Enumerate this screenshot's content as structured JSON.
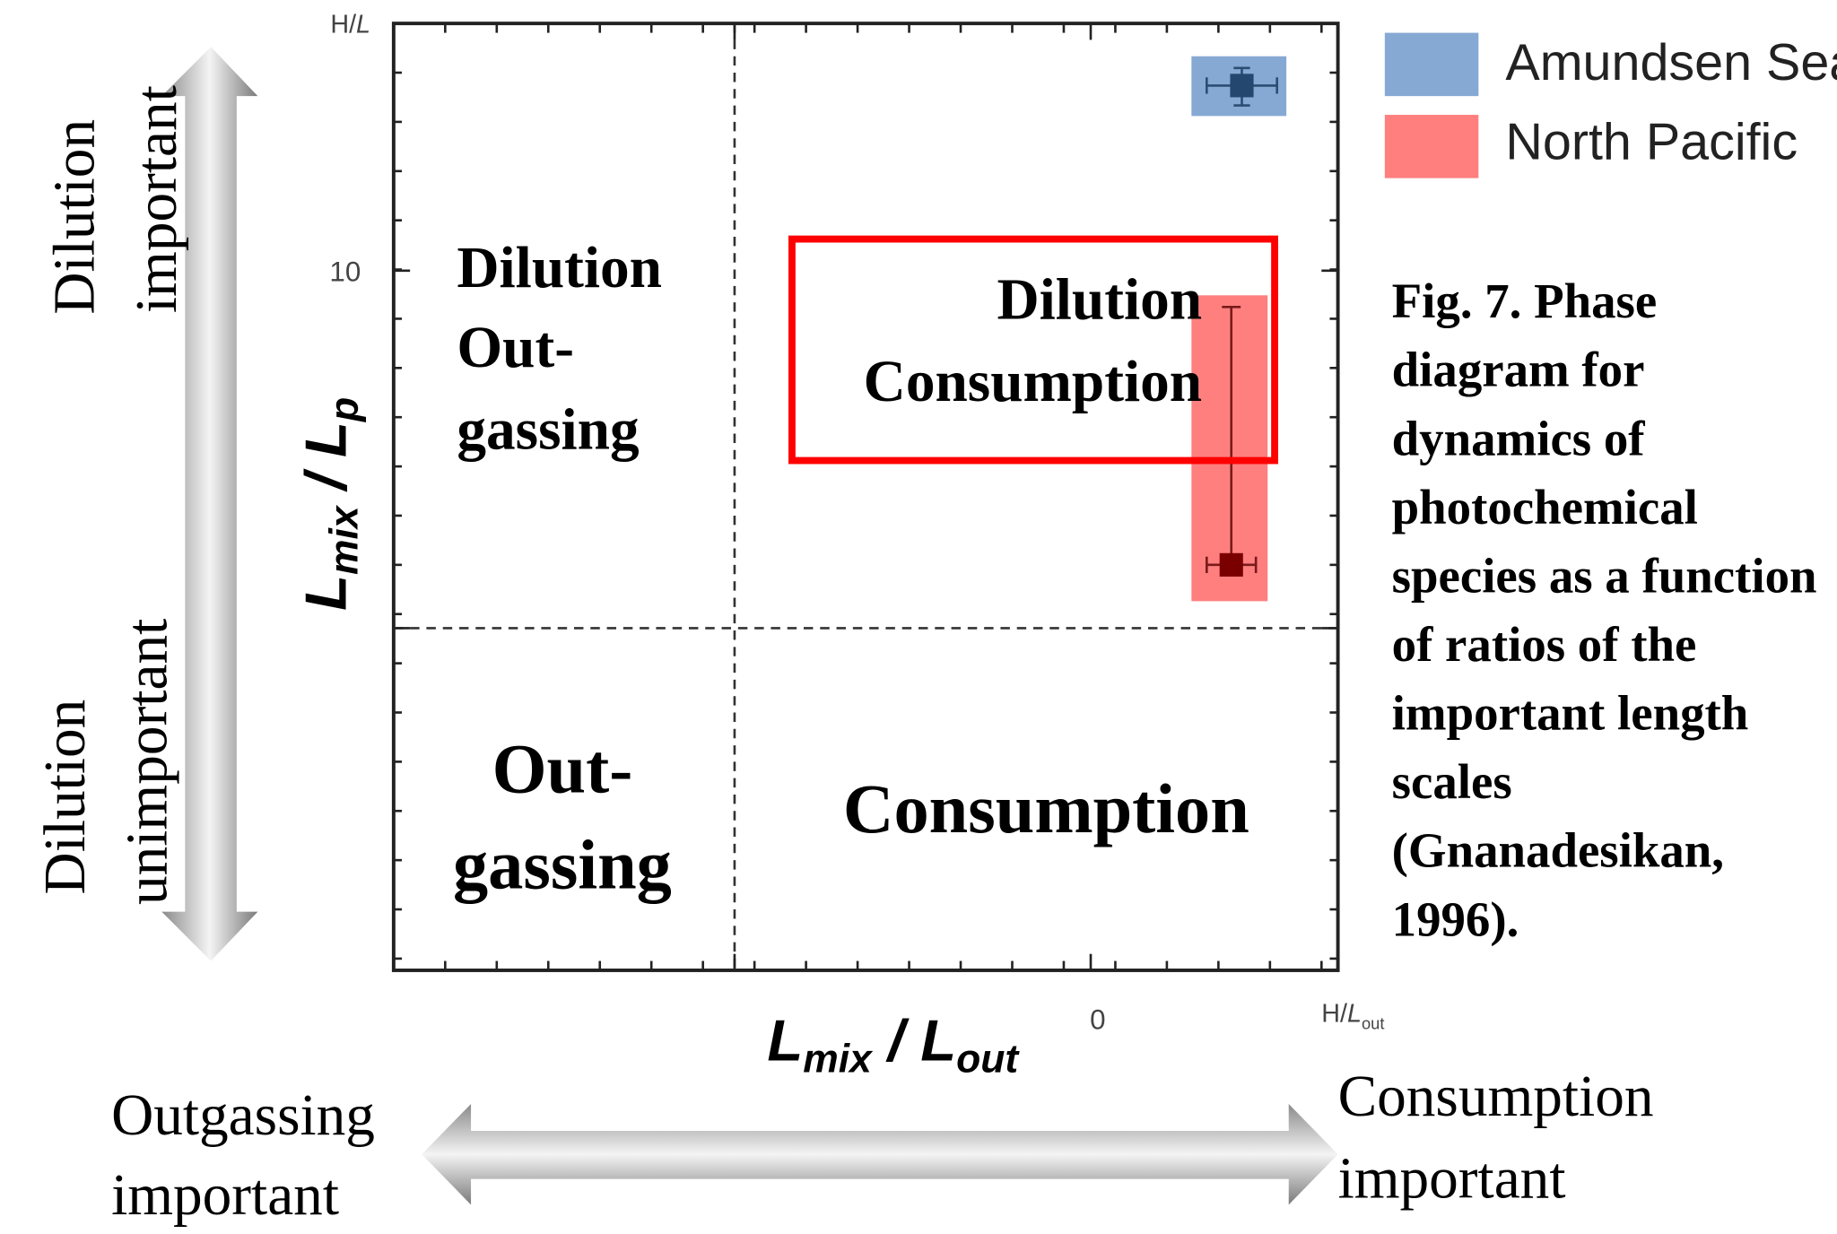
{
  "plot": {
    "y_end_label": {
      "text": "H/",
      "italic": "L"
    },
    "x_end_label": {
      "text": "H/",
      "italic": "L",
      "subscript": "out"
    },
    "y_tick": "10",
    "x_tick": "0",
    "y_title": {
      "main1": "L",
      "sub1": "mix",
      "sep": " / ",
      "main2": "L",
      "sub2": "p"
    },
    "x_title": {
      "main1": "L",
      "sub1": "mix",
      "sep": " /  ",
      "main2": "L",
      "sub2": "out"
    }
  },
  "quadrants": {
    "top_left": [
      "Dilution",
      "Out-",
      "gassing"
    ],
    "top_right": [
      "Dilution",
      "Consumption"
    ],
    "bottom_left": [
      "Out-",
      "gassing"
    ],
    "bottom_right": [
      "Consumption"
    ]
  },
  "legend": [
    {
      "name": "Amundsen Sea",
      "color": "#86a9d4"
    },
    {
      "name": "North Pacific",
      "color": "#ff7f7f"
    }
  ],
  "side_labels": {
    "left_top": [
      "Dilution",
      "important"
    ],
    "left_bottom": [
      "Dilution",
      "unimportant"
    ],
    "bottom_left": [
      "Outgassing",
      "important"
    ],
    "bottom_right": [
      "Consumption",
      "important"
    ]
  },
  "caption": [
    "Fig. 7. Phase",
    "diagram for",
    "dynamics of",
    "photochemical",
    "species as a function",
    "of ratios of the",
    "important length",
    "scales",
    "(Gnanadesikan,",
    "1996)."
  ]
}
